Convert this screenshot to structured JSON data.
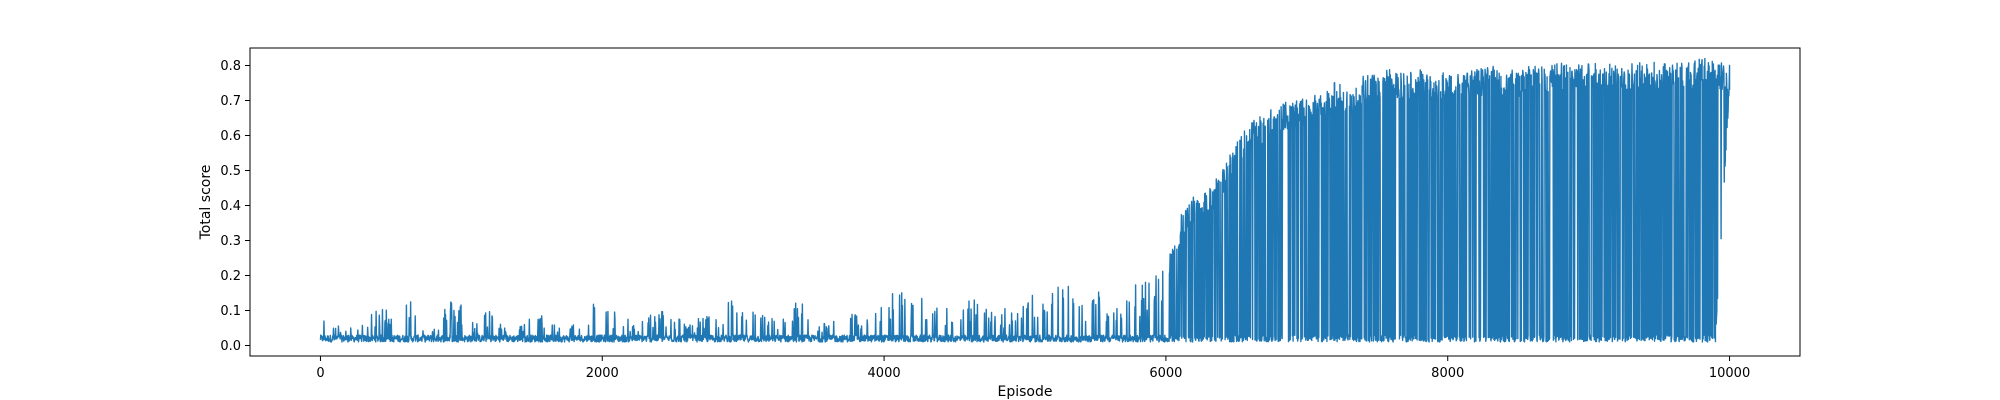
{
  "chart_data": {
    "type": "line",
    "title": "",
    "xlabel": "Episode",
    "ylabel": "Total score",
    "xlim": [
      -500,
      10500
    ],
    "ylim": [
      -0.03,
      0.85
    ],
    "xticks": [
      0,
      2000,
      4000,
      6000,
      8000,
      10000
    ],
    "xtick_labels": [
      "0",
      "2000",
      "4000",
      "6000",
      "8000",
      "10000"
    ],
    "yticks": [
      0.0,
      0.1,
      0.2,
      0.3,
      0.4,
      0.5,
      0.6,
      0.7,
      0.8
    ],
    "ytick_labels": [
      "0.0",
      "0.1",
      "0.2",
      "0.3",
      "0.4",
      "0.5",
      "0.6",
      "0.7",
      "0.8"
    ],
    "grid": false,
    "series": [
      {
        "color": "#1f77b4",
        "note_points": "representative envelope of the score trace per 100 episodes: [episode, min score, max score]",
        "envelope": [
          [
            0,
            0.01,
            0.11
          ],
          [
            100,
            0.01,
            0.06
          ],
          [
            200,
            0.01,
            0.05
          ],
          [
            300,
            0.01,
            0.07
          ],
          [
            400,
            0.01,
            0.1
          ],
          [
            500,
            0.01,
            0.13
          ],
          [
            600,
            0.01,
            0.19
          ],
          [
            700,
            0.01,
            0.07
          ],
          [
            800,
            0.01,
            0.05
          ],
          [
            900,
            0.01,
            0.13
          ],
          [
            1000,
            0.01,
            0.13
          ],
          [
            1100,
            0.01,
            0.06
          ],
          [
            1200,
            0.01,
            0.12
          ],
          [
            1300,
            0.01,
            0.05
          ],
          [
            1400,
            0.01,
            0.07
          ],
          [
            1500,
            0.01,
            0.08
          ],
          [
            1600,
            0.01,
            0.09
          ],
          [
            1700,
            0.01,
            0.06
          ],
          [
            1800,
            0.01,
            0.08
          ],
          [
            1900,
            0.01,
            0.13
          ],
          [
            2000,
            0.01,
            0.12
          ],
          [
            2100,
            0.01,
            0.1
          ],
          [
            2200,
            0.01,
            0.07
          ],
          [
            2300,
            0.01,
            0.08
          ],
          [
            2400,
            0.01,
            0.11
          ],
          [
            2500,
            0.01,
            0.09
          ],
          [
            2600,
            0.01,
            0.07
          ],
          [
            2700,
            0.01,
            0.08
          ],
          [
            2800,
            0.01,
            0.1
          ],
          [
            2900,
            0.01,
            0.14
          ],
          [
            3000,
            0.01,
            0.11
          ],
          [
            3100,
            0.01,
            0.1
          ],
          [
            3200,
            0.01,
            0.08
          ],
          [
            3300,
            0.01,
            0.09
          ],
          [
            3400,
            0.01,
            0.14
          ],
          [
            3500,
            0.01,
            0.08
          ],
          [
            3600,
            0.01,
            0.07
          ],
          [
            3700,
            0.01,
            0.1
          ],
          [
            3800,
            0.01,
            0.09
          ],
          [
            3900,
            0.01,
            0.12
          ],
          [
            4000,
            0.01,
            0.11
          ],
          [
            4100,
            0.01,
            0.19
          ],
          [
            4200,
            0.01,
            0.17
          ],
          [
            4300,
            0.01,
            0.12
          ],
          [
            4400,
            0.01,
            0.13
          ],
          [
            4500,
            0.01,
            0.1
          ],
          [
            4600,
            0.01,
            0.14
          ],
          [
            4700,
            0.01,
            0.12
          ],
          [
            4800,
            0.01,
            0.09
          ],
          [
            4900,
            0.01,
            0.13
          ],
          [
            5000,
            0.01,
            0.14
          ],
          [
            5100,
            0.01,
            0.15
          ],
          [
            5200,
            0.01,
            0.22
          ],
          [
            5300,
            0.01,
            0.18
          ],
          [
            5400,
            0.01,
            0.15
          ],
          [
            5500,
            0.01,
            0.17
          ],
          [
            5600,
            0.01,
            0.13
          ],
          [
            5700,
            0.01,
            0.17
          ],
          [
            5800,
            0.01,
            0.19
          ],
          [
            5900,
            0.01,
            0.2
          ],
          [
            6000,
            0.01,
            0.22
          ],
          [
            6100,
            0.01,
            0.37
          ],
          [
            6200,
            0.01,
            0.43
          ],
          [
            6300,
            0.01,
            0.44
          ],
          [
            6400,
            0.01,
            0.51
          ],
          [
            6500,
            0.01,
            0.59
          ],
          [
            6600,
            0.01,
            0.64
          ],
          [
            6700,
            0.01,
            0.66
          ],
          [
            6800,
            0.01,
            0.69
          ],
          [
            6900,
            0.01,
            0.7
          ],
          [
            7000,
            0.01,
            0.71
          ],
          [
            7100,
            0.01,
            0.72
          ],
          [
            7200,
            0.01,
            0.76
          ],
          [
            7300,
            0.01,
            0.72
          ],
          [
            7400,
            0.01,
            0.77
          ],
          [
            7500,
            0.01,
            0.78
          ],
          [
            7600,
            0.01,
            0.79
          ],
          [
            7700,
            0.01,
            0.78
          ],
          [
            7800,
            0.01,
            0.79
          ],
          [
            7900,
            0.01,
            0.77
          ],
          [
            8000,
            0.01,
            0.79
          ],
          [
            8100,
            0.01,
            0.78
          ],
          [
            8200,
            0.01,
            0.79
          ],
          [
            8300,
            0.01,
            0.8
          ],
          [
            8400,
            0.01,
            0.79
          ],
          [
            8500,
            0.01,
            0.79
          ],
          [
            8600,
            0.01,
            0.8
          ],
          [
            8700,
            0.01,
            0.8
          ],
          [
            8800,
            0.01,
            0.81
          ],
          [
            8900,
            0.01,
            0.8
          ],
          [
            9000,
            0.01,
            0.81
          ],
          [
            9100,
            0.01,
            0.81
          ],
          [
            9200,
            0.01,
            0.8
          ],
          [
            9300,
            0.01,
            0.81
          ],
          [
            9400,
            0.01,
            0.81
          ],
          [
            9500,
            0.01,
            0.81
          ],
          [
            9600,
            0.01,
            0.81
          ],
          [
            9700,
            0.01,
            0.81
          ],
          [
            9800,
            0.01,
            0.82
          ],
          [
            9900,
            0.01,
            0.82
          ],
          [
            10000,
            0.73,
            0.8
          ]
        ],
        "line_note": "n/a"
      }
    ]
  }
}
